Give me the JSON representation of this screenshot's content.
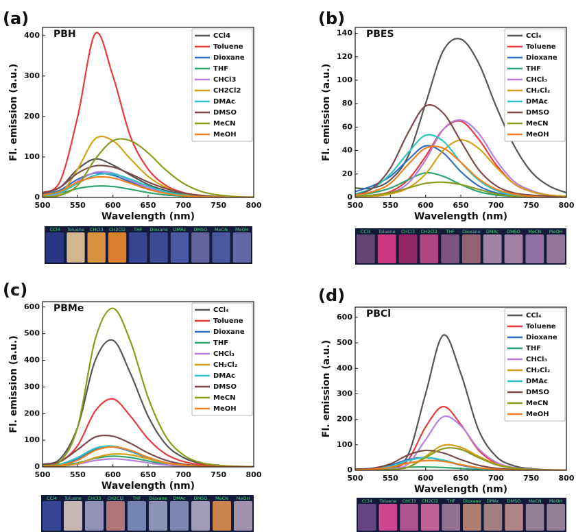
{
  "chart_data": [
    {
      "type": "line",
      "panel_label": "(a)",
      "title": "PBH",
      "xlabel": "Wavelength (nm)",
      "ylabel": "Fl. emission (a.u.)",
      "x": [
        500,
        525,
        550,
        575,
        600,
        625,
        650,
        675,
        700,
        725,
        750,
        775,
        800
      ],
      "xlim": [
        500,
        800
      ],
      "xticks": [
        500,
        550,
        600,
        650,
        700,
        750,
        800
      ],
      "ylim": [
        0,
        420
      ],
      "yticks": [
        0,
        100,
        200,
        300,
        400
      ],
      "legend": "upper right",
      "series": [
        {
          "name": "CCl4",
          "color": "#555555",
          "values": [
            10,
            25,
            70,
            95,
            80,
            55,
            32,
            17,
            8,
            4,
            2,
            1,
            0
          ]
        },
        {
          "name": "Toluene",
          "color": "#e8393c",
          "values": [
            12,
            40,
            200,
            405,
            300,
            150,
            70,
            30,
            12,
            5,
            2,
            1,
            0
          ]
        },
        {
          "name": "Dioxane",
          "color": "#2f6ebf",
          "values": [
            8,
            18,
            45,
            60,
            55,
            38,
            22,
            11,
            5,
            2,
            1,
            0,
            0
          ]
        },
        {
          "name": "THF",
          "color": "#2ea36f",
          "values": [
            5,
            10,
            22,
            28,
            27,
            20,
            12,
            6,
            3,
            1,
            0,
            0,
            0
          ]
        },
        {
          "name": "CHCl3",
          "color": "#b57fe0",
          "values": [
            3,
            10,
            40,
            62,
            60,
            42,
            24,
            12,
            5,
            2,
            1,
            0,
            0
          ]
        },
        {
          "name": "CH2Cl2",
          "color": "#d4a017",
          "values": [
            2,
            8,
            70,
            145,
            140,
            95,
            52,
            25,
            10,
            4,
            2,
            1,
            0
          ]
        },
        {
          "name": "DMAc",
          "color": "#2ec4c4",
          "values": [
            5,
            12,
            35,
            55,
            58,
            45,
            28,
            14,
            6,
            2,
            1,
            0,
            0
          ]
        },
        {
          "name": "DMSO",
          "color": "#7a4a4a",
          "values": [
            10,
            25,
            60,
            78,
            75,
            58,
            38,
            22,
            11,
            5,
            2,
            1,
            0
          ]
        },
        {
          "name": "MeCN",
          "color": "#8a9a1a",
          "values": [
            2,
            5,
            30,
            95,
            140,
            140,
            110,
            68,
            35,
            15,
            6,
            2,
            1
          ]
        },
        {
          "name": "MeOH",
          "color": "#f07f20",
          "values": [
            6,
            15,
            38,
            50,
            48,
            35,
            20,
            10,
            4,
            2,
            1,
            0,
            0
          ]
        }
      ]
    },
    {
      "type": "line",
      "panel_label": "(b)",
      "title": "PBES",
      "xlabel": "Wavelength (nm)",
      "ylabel": "Fl. emission (a.u.)",
      "x": [
        500,
        525,
        550,
        575,
        600,
        625,
        650,
        675,
        700,
        725,
        750,
        775,
        800
      ],
      "xlim": [
        500,
        800
      ],
      "xticks": [
        500,
        550,
        600,
        650,
        700,
        750,
        800
      ],
      "ylim": [
        0,
        145
      ],
      "yticks": [
        0,
        20,
        40,
        60,
        80,
        100,
        120,
        140
      ],
      "legend": "upper right",
      "series": [
        {
          "name": "CCl₄",
          "color": "#555555",
          "values": [
            8,
            8,
            15,
            35,
            80,
            125,
            135,
            115,
            78,
            45,
            22,
            10,
            4
          ]
        },
        {
          "name": "Toluene",
          "color": "#e8393c",
          "values": [
            1,
            2,
            5,
            15,
            35,
            58,
            65,
            50,
            28,
            12,
            5,
            2,
            1
          ]
        },
        {
          "name": "Dioxane",
          "color": "#2f6ebf",
          "values": [
            5,
            10,
            18,
            32,
            44,
            38,
            22,
            10,
            4,
            2,
            1,
            0,
            0
          ]
        },
        {
          "name": "THF",
          "color": "#2ea36f",
          "values": [
            2,
            4,
            8,
            15,
            21,
            18,
            11,
            5,
            2,
            1,
            0,
            0,
            0
          ]
        },
        {
          "name": "CHCl₃",
          "color": "#b57fe0",
          "values": [
            1,
            2,
            4,
            12,
            32,
            58,
            66,
            55,
            32,
            14,
            6,
            2,
            1
          ]
        },
        {
          "name": "CH₂Cl₂",
          "color": "#d4a017",
          "values": [
            1,
            1,
            3,
            8,
            20,
            40,
            49,
            42,
            26,
            12,
            5,
            2,
            1
          ]
        },
        {
          "name": "DMAc",
          "color": "#2ec4c4",
          "values": [
            3,
            8,
            20,
            38,
            53,
            48,
            30,
            15,
            6,
            2,
            1,
            0,
            0
          ]
        },
        {
          "name": "DMSO",
          "color": "#7a4a4a",
          "values": [
            2,
            8,
            25,
            55,
            78,
            72,
            48,
            24,
            10,
            4,
            2,
            1,
            0
          ]
        },
        {
          "name": "MeCN",
          "color": "#8a9a1a",
          "values": [
            1,
            2,
            4,
            8,
            12,
            13,
            11,
            7,
            3,
            1,
            0,
            0,
            0
          ]
        },
        {
          "name": "MeOH",
          "color": "#f07f20",
          "values": [
            2,
            5,
            12,
            28,
            42,
            42,
            30,
            16,
            7,
            3,
            1,
            0,
            0
          ]
        }
      ]
    },
    {
      "type": "line",
      "panel_label": "(c)",
      "title": "PBMe",
      "xlabel": "Wavelength (nm)",
      "ylabel": "Fl. emission (a.u.)",
      "x": [
        500,
        525,
        550,
        575,
        600,
        625,
        650,
        675,
        700,
        725,
        750,
        775,
        800
      ],
      "xlim": [
        500,
        800
      ],
      "xticks": [
        500,
        550,
        600,
        650,
        700,
        750,
        800
      ],
      "ylim": [
        0,
        620
      ],
      "yticks": [
        0,
        100,
        200,
        300,
        400,
        500,
        600
      ],
      "legend": "upper right",
      "series": [
        {
          "name": "CCl₄",
          "color": "#555555",
          "values": [
            10,
            30,
            150,
            400,
            475,
            350,
            190,
            85,
            35,
            13,
            5,
            2,
            1
          ]
        },
        {
          "name": "Toluene",
          "color": "#e8393c",
          "values": [
            8,
            20,
            80,
            210,
            255,
            190,
            105,
            48,
            20,
            8,
            3,
            1,
            0
          ]
        },
        {
          "name": "Dioxane",
          "color": "#2f6ebf",
          "values": [
            3,
            8,
            30,
            65,
            75,
            58,
            33,
            15,
            6,
            2,
            1,
            0,
            0
          ]
        },
        {
          "name": "THF",
          "color": "#2ea36f",
          "values": [
            2,
            5,
            15,
            32,
            40,
            35,
            22,
            10,
            4,
            1,
            0,
            0,
            0
          ]
        },
        {
          "name": "CHCl₃",
          "color": "#b57fe0",
          "values": [
            1,
            3,
            10,
            24,
            30,
            25,
            15,
            7,
            3,
            1,
            0,
            0,
            0
          ]
        },
        {
          "name": "CH₂Cl₂",
          "color": "#d4a017",
          "values": [
            1,
            3,
            12,
            35,
            48,
            45,
            30,
            14,
            6,
            2,
            1,
            0,
            0
          ]
        },
        {
          "name": "DMAc",
          "color": "#2ec4c4",
          "values": [
            3,
            10,
            35,
            70,
            78,
            60,
            35,
            16,
            7,
            2,
            1,
            0,
            0
          ]
        },
        {
          "name": "DMSO",
          "color": "#7a4a4a",
          "values": [
            8,
            20,
            65,
            112,
            115,
            88,
            52,
            25,
            10,
            4,
            1,
            0,
            0
          ]
        },
        {
          "name": "MeCN",
          "color": "#8a9a1a",
          "values": [
            5,
            20,
            150,
            480,
            595,
            470,
            260,
            115,
            45,
            16,
            6,
            2,
            1
          ]
        },
        {
          "name": "MeOH",
          "color": "#f07f20",
          "values": [
            2,
            6,
            25,
            62,
            75,
            62,
            36,
            16,
            7,
            2,
            1,
            0,
            0
          ]
        }
      ]
    },
    {
      "type": "line",
      "panel_label": "(d)",
      "title": "PBCl",
      "xlabel": "Wavelength (nm)",
      "ylabel": "Fl. emission (a.u.)",
      "x": [
        500,
        525,
        550,
        575,
        600,
        625,
        650,
        675,
        700,
        725,
        750,
        775,
        800
      ],
      "xlim": [
        500,
        800
      ],
      "xticks": [
        500,
        550,
        600,
        650,
        700,
        750,
        800
      ],
      "ylim": [
        0,
        640
      ],
      "yticks": [
        0,
        100,
        200,
        300,
        400,
        500,
        600
      ],
      "legend": "upper right",
      "series": [
        {
          "name": "CCl₄",
          "color": "#555555",
          "values": [
            5,
            6,
            12,
            60,
            300,
            530,
            380,
            160,
            55,
            18,
            6,
            2,
            1
          ]
        },
        {
          "name": "Toluene",
          "color": "#e8393c",
          "values": [
            2,
            3,
            8,
            40,
            170,
            250,
            180,
            80,
            28,
            9,
            3,
            1,
            0
          ]
        },
        {
          "name": "Dioxane",
          "color": "#2f6ebf",
          "values": [
            3,
            8,
            20,
            42,
            50,
            38,
            20,
            8,
            3,
            1,
            0,
            0,
            0
          ]
        },
        {
          "name": "THF",
          "color": "#2ea36f",
          "values": [
            3,
            5,
            9,
            12,
            13,
            11,
            7,
            3,
            1,
            0,
            0,
            0,
            0
          ]
        },
        {
          "name": "CHCl₃",
          "color": "#b57fe0",
          "values": [
            1,
            2,
            5,
            25,
            120,
            210,
            175,
            85,
            32,
            11,
            4,
            1,
            0
          ]
        },
        {
          "name": "CH₂Cl₂",
          "color": "#d4a017",
          "values": [
            1,
            1,
            3,
            12,
            55,
            98,
            90,
            55,
            25,
            9,
            3,
            1,
            0
          ]
        },
        {
          "name": "DMAc",
          "color": "#2ec4c4",
          "values": [
            2,
            5,
            15,
            38,
            50,
            40,
            22,
            9,
            3,
            1,
            0,
            0,
            0
          ]
        },
        {
          "name": "DMSO",
          "color": "#7a4a4a",
          "values": [
            3,
            8,
            25,
            60,
            78,
            68,
            42,
            20,
            8,
            3,
            1,
            0,
            0
          ]
        },
        {
          "name": "MeCN",
          "color": "#8a9a1a",
          "values": [
            1,
            1,
            3,
            12,
            50,
            85,
            82,
            50,
            22,
            8,
            3,
            1,
            0
          ]
        },
        {
          "name": "MeOH",
          "color": "#f07f20",
          "values": [
            2,
            4,
            12,
            28,
            38,
            35,
            22,
            10,
            4,
            1,
            0,
            0,
            0
          ]
        }
      ]
    }
  ],
  "photos": [
    [
      "CCl4",
      "Toluene",
      "CHCl3",
      "CH2Cl2",
      "THF",
      "Dioxane",
      "DMAc",
      "DMSO",
      "MeCN",
      "MeOH"
    ],
    [
      "CCl4",
      "Toluene",
      "CHCl3",
      "CH2Cl2",
      "THF",
      "Dioxane",
      "DMAc",
      "DMSO",
      "MeCN",
      "MeOH"
    ],
    [
      "CCl4",
      "Toluene",
      "CHCl3",
      "CH2Cl2",
      "THF",
      "Dioxane",
      "DMAc",
      "DMSO",
      "MeCN",
      "MeOH"
    ],
    [
      "CCl4",
      "Toluene",
      "CHCl3",
      "CH2Cl2",
      "THF",
      "Dioxane",
      "DMAc",
      "DMSO",
      "MeCN",
      "MeOH"
    ]
  ]
}
